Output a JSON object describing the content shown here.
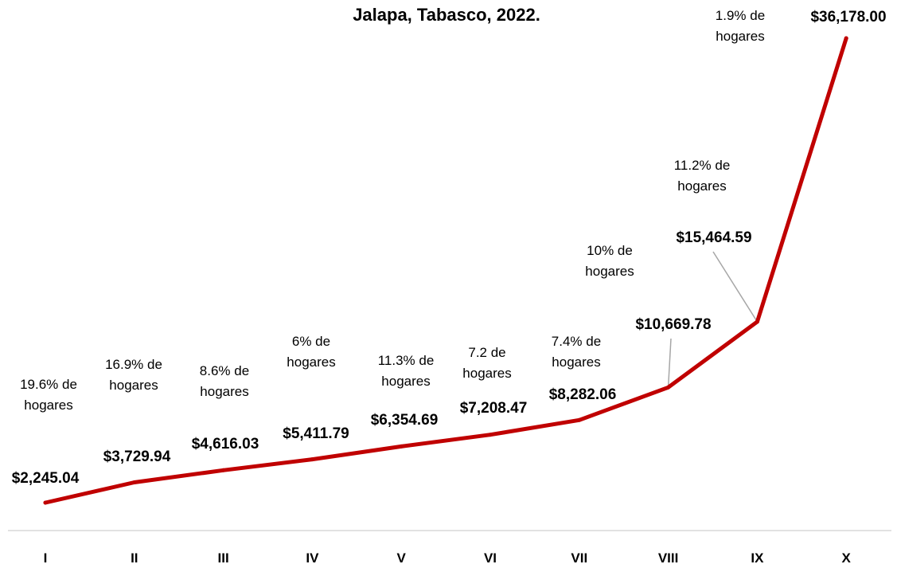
{
  "chart_data": {
    "type": "line",
    "title": "Jalapa, Tabasco, 2022.",
    "xlabel": "",
    "ylabel": "",
    "categories": [
      "I",
      "II",
      "III",
      "IV",
      "V",
      "VI",
      "VII",
      "VIII",
      "IX",
      "X"
    ],
    "series": [
      {
        "values": [
          2245.04,
          3729.94,
          4616.03,
          5411.79,
          6354.69,
          7208.47,
          8282.06,
          10669.78,
          15464.59,
          36178.0
        ]
      }
    ],
    "data_labels": [
      "$2,245.04",
      "$3,729.94",
      "$4,616.03",
      "$5,411.79",
      "$6,354.69",
      "$7,208.47",
      "$8,282.06",
      "$10,669.78",
      "$15,464.59",
      "$36,178.00"
    ],
    "annotations": [
      [
        "19.6% de",
        "hogares"
      ],
      [
        "16.9% de",
        "hogares"
      ],
      [
        "8.6% de",
        "hogares"
      ],
      [
        "6% de",
        "hogares"
      ],
      [
        "11.3% de",
        "hogares"
      ],
      [
        "7.2 de",
        "hogares"
      ],
      [
        "7.4% de",
        "hogares"
      ],
      [
        "10% de",
        "hogares"
      ],
      [
        "11.2% de",
        "hogares"
      ],
      [
        "1.9% de",
        "hogares"
      ]
    ],
    "ylim": [
      0,
      38000
    ],
    "grid": false,
    "legend": "none",
    "colors": {
      "line": "#c00000",
      "axis": "#d9d9d9",
      "leader": "#a6a6a6"
    }
  }
}
